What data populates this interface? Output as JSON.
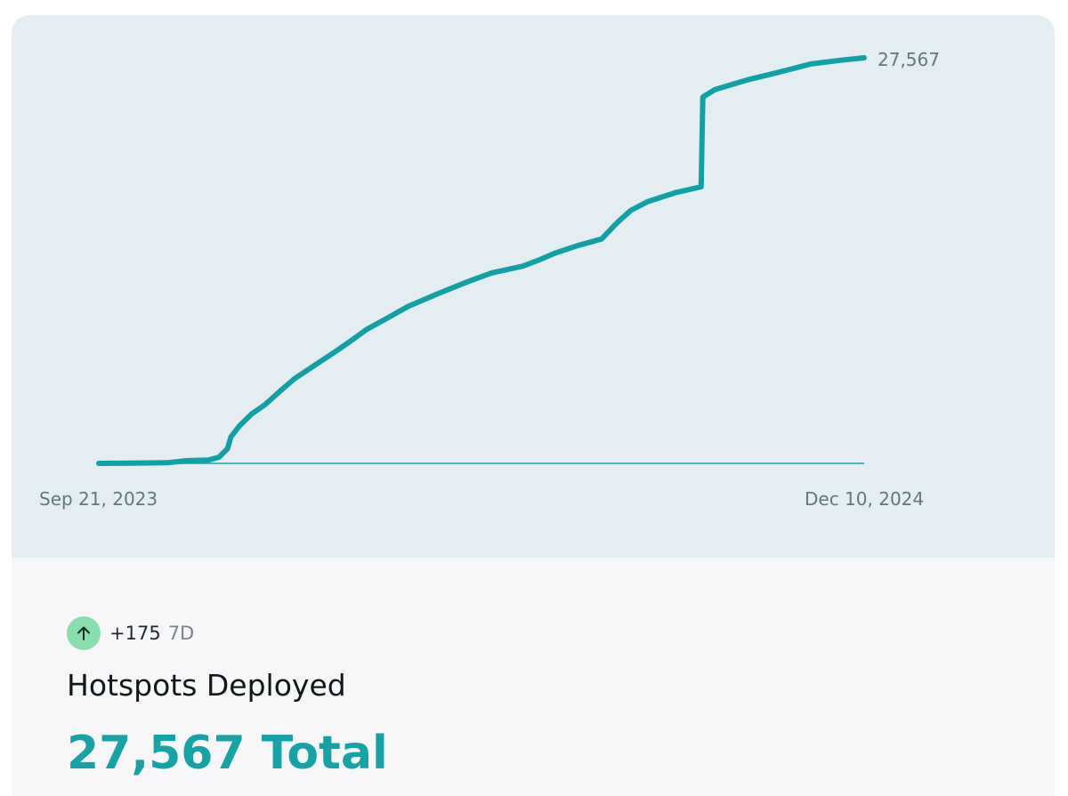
{
  "colors": {
    "line": "#0fa1a5",
    "axis": "#1aa4a8",
    "panel": "#e4edf2",
    "badge": "#86dfad",
    "total": "#15a3a7"
  },
  "chart_data": {
    "type": "line",
    "title": "",
    "xlabel": "",
    "ylabel": "",
    "x_tick_labels": [
      "Sep 21, 2023",
      "Dec 10, 2024"
    ],
    "end_label": "27,567",
    "grid": false,
    "xlim": [
      "2023-09-21",
      "2024-12-10"
    ],
    "ylim": [
      0,
      27567
    ],
    "series": [
      {
        "points": [
          [
            "2023-09-21",
            0
          ],
          [
            "2023-10-10",
            20
          ],
          [
            "2023-10-31",
            40
          ],
          [
            "2023-11-11",
            180
          ],
          [
            "2023-11-24",
            230
          ],
          [
            "2023-11-30",
            420
          ],
          [
            "2023-12-05",
            1000
          ],
          [
            "2023-12-07",
            1800
          ],
          [
            "2023-12-12",
            2550
          ],
          [
            "2023-12-19",
            3350
          ],
          [
            "2023-12-27",
            4000
          ],
          [
            "2024-01-05",
            4950
          ],
          [
            "2024-01-13",
            5750
          ],
          [
            "2024-01-24",
            6600
          ],
          [
            "2024-02-04",
            7450
          ],
          [
            "2024-02-14",
            8250
          ],
          [
            "2024-02-24",
            9100
          ],
          [
            "2024-03-06",
            9800
          ],
          [
            "2024-03-19",
            10650
          ],
          [
            "2024-04-06",
            11550
          ],
          [
            "2024-04-23",
            12350
          ],
          [
            "2024-05-07",
            12950
          ],
          [
            "2024-05-25",
            13400
          ],
          [
            "2024-06-03",
            13800
          ],
          [
            "2024-06-13",
            14300
          ],
          [
            "2024-06-26",
            14800
          ],
          [
            "2024-07-10",
            15250
          ],
          [
            "2024-07-19",
            16350
          ],
          [
            "2024-07-27",
            17200
          ],
          [
            "2024-08-06",
            17800
          ],
          [
            "2024-08-22",
            18400
          ],
          [
            "2024-09-06",
            18800
          ],
          [
            "2024-09-07",
            24900
          ],
          [
            "2024-09-14",
            25400
          ],
          [
            "2024-10-04",
            26100
          ],
          [
            "2024-10-20",
            26550
          ],
          [
            "2024-11-09",
            27150
          ],
          [
            "2024-11-26",
            27400
          ],
          [
            "2024-12-10",
            27567
          ]
        ]
      }
    ]
  },
  "stats": {
    "change_value": "+175",
    "change_period": "7D",
    "title": "Hotspots Deployed",
    "total": "27,567 Total"
  },
  "icons": {
    "change": "arrow-up-icon"
  }
}
